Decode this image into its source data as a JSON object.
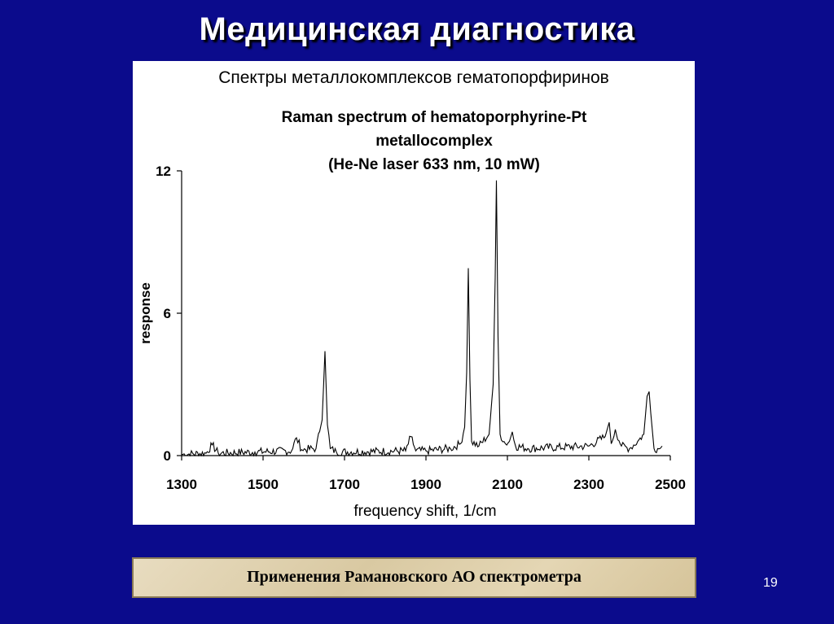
{
  "slide": {
    "title": "Медицинская диагностика",
    "subtitle": "Спектры металлокомплексов гематопорфиринов",
    "caption": "Применения Рамановского  АО спектрометра",
    "page_number": "19"
  },
  "colors": {
    "background": "#0b0b8c",
    "chart_line": "#000000",
    "title_text": "#ffffff"
  },
  "chart_data": {
    "type": "line",
    "title_lines": [
      "Raman spectrum of hematoporphyrine-Pt",
      "metallocomplex",
      "(He-Ne laser 633 nm, 10 mW)"
    ],
    "xlabel": "frequency  shift,  1/cm",
    "ylabel": "response",
    "xlim": [
      1300,
      2500
    ],
    "ylim": [
      0,
      12
    ],
    "x_ticks": [
      "1300",
      "1500",
      "1700",
      "1900",
      "2100",
      "2300",
      "2500"
    ],
    "y_ticks": [
      "0",
      "6",
      "12"
    ],
    "grid": false,
    "legend": "none",
    "series": [
      {
        "x": [
          1300,
          1360,
          1375,
          1390,
          1480,
          1570,
          1582,
          1595,
          1630,
          1645,
          1652,
          1658,
          1665,
          1680,
          1850,
          1863,
          1875,
          1900,
          1960,
          1985,
          1995,
          2000,
          2004,
          2008,
          2012,
          2030,
          2055,
          2065,
          2070,
          2073,
          2077,
          2082,
          2095,
          2105,
          2112,
          2120,
          2150,
          2300,
          2340,
          2350,
          2355,
          2365,
          2380,
          2400,
          2420,
          2435,
          2443,
          2448,
          2452,
          2460,
          2475,
          2480
        ],
        "y": [
          0.05,
          0.1,
          0.45,
          0.1,
          0.15,
          0.2,
          0.75,
          0.25,
          0.3,
          1.5,
          4.4,
          1.3,
          0.3,
          0.15,
          0.2,
          0.8,
          0.2,
          0.2,
          0.3,
          0.5,
          1.2,
          3.5,
          7.9,
          3.2,
          0.6,
          0.4,
          0.9,
          3.0,
          7.5,
          11.6,
          5.0,
          0.9,
          0.5,
          0.6,
          1.0,
          0.4,
          0.3,
          0.4,
          0.8,
          1.4,
          0.5,
          1.1,
          0.4,
          0.3,
          0.6,
          0.9,
          2.5,
          2.7,
          1.8,
          0.3,
          0.3,
          0.4
        ]
      }
    ]
  }
}
